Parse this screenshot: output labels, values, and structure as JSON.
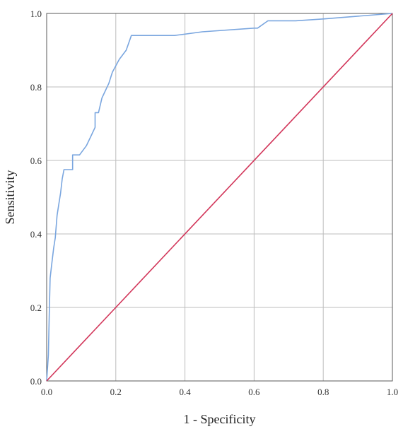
{
  "chart_data": {
    "type": "line",
    "title": "",
    "xlabel": "1 - Specificity",
    "ylabel": "Sensitivity",
    "xlim": [
      0.0,
      1.0
    ],
    "ylim": [
      0.0,
      1.0
    ],
    "grid": true,
    "legend": "none",
    "x_ticks": [
      "0.0",
      "0.2",
      "0.4",
      "0.6",
      "0.8",
      "1.0"
    ],
    "y_ticks": [
      "0.0",
      "0.2",
      "0.4",
      "0.6",
      "0.8",
      "1.0"
    ],
    "x_tick_values": [
      0.0,
      0.2,
      0.4,
      0.6,
      0.8,
      1.0
    ],
    "y_tick_values": [
      0.0,
      0.2,
      0.4,
      0.6,
      0.8,
      1.0
    ],
    "series": [
      {
        "color": "#7aa6df",
        "points": [
          [
            0.0,
            0.0
          ],
          [
            0.005,
            0.07
          ],
          [
            0.008,
            0.2
          ],
          [
            0.01,
            0.28
          ],
          [
            0.015,
            0.32
          ],
          [
            0.02,
            0.36
          ],
          [
            0.025,
            0.39
          ],
          [
            0.03,
            0.45
          ],
          [
            0.035,
            0.48
          ],
          [
            0.04,
            0.51
          ],
          [
            0.045,
            0.55
          ],
          [
            0.05,
            0.575
          ],
          [
            0.075,
            0.575
          ],
          [
            0.075,
            0.615
          ],
          [
            0.095,
            0.615
          ],
          [
            0.115,
            0.64
          ],
          [
            0.13,
            0.67
          ],
          [
            0.14,
            0.69
          ],
          [
            0.14,
            0.73
          ],
          [
            0.15,
            0.73
          ],
          [
            0.16,
            0.77
          ],
          [
            0.18,
            0.81
          ],
          [
            0.19,
            0.84
          ],
          [
            0.21,
            0.875
          ],
          [
            0.23,
            0.9
          ],
          [
            0.245,
            0.94
          ],
          [
            0.37,
            0.94
          ],
          [
            0.45,
            0.95
          ],
          [
            0.6,
            0.96
          ],
          [
            0.61,
            0.96
          ],
          [
            0.64,
            0.98
          ],
          [
            0.72,
            0.98
          ],
          [
            0.8,
            0.985
          ],
          [
            1.0,
            1.0
          ]
        ]
      },
      {
        "color": "#d2365a",
        "points": [
          [
            0.0,
            0.0
          ],
          [
            1.0,
            1.0
          ]
        ]
      }
    ]
  }
}
